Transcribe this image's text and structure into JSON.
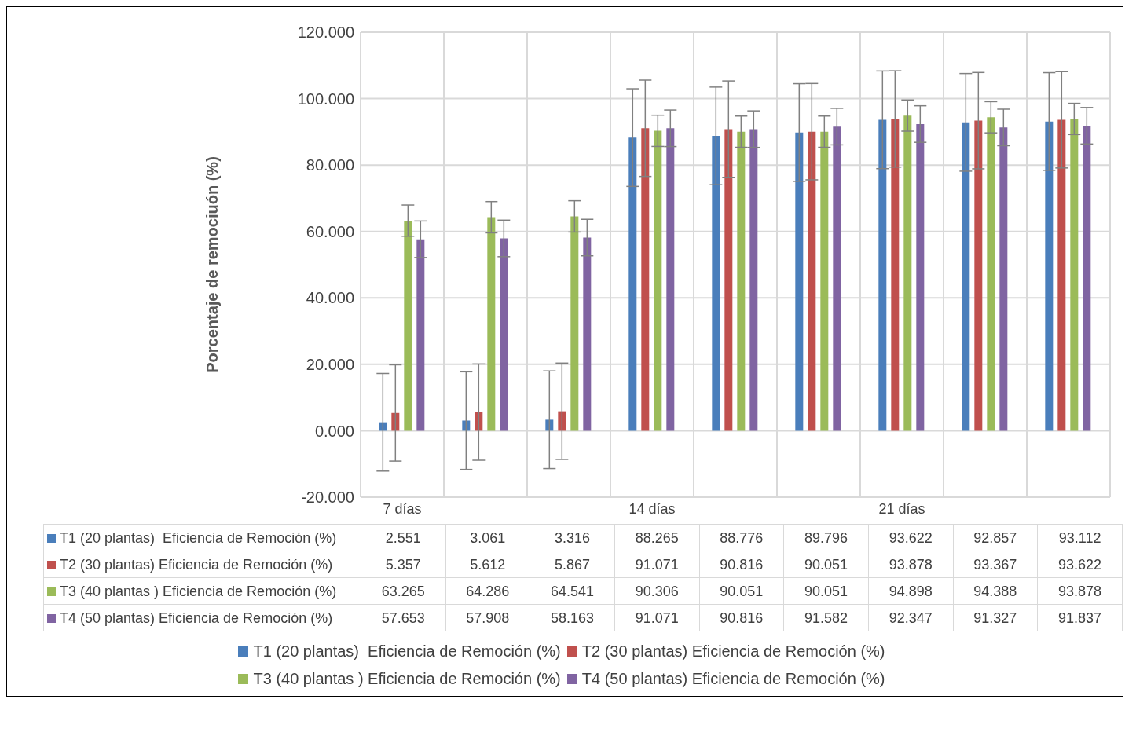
{
  "chart_data": {
    "type": "bar",
    "ylabel": "Porcentaje de remociuón (%)",
    "categories": [
      "7 días",
      null,
      null,
      "14 días",
      null,
      null,
      "21 días",
      null,
      null
    ],
    "series": [
      {
        "name": "T1 (20 plantas)  Eficiencia de Remoción (%)",
        "color": "#4a7ebb",
        "values": [
          2.551,
          3.061,
          3.316,
          88.265,
          88.776,
          89.796,
          93.622,
          92.857,
          93.112
        ],
        "errors": [
          14.7,
          14.7,
          14.7,
          14.7,
          14.7,
          14.7,
          14.7,
          14.7,
          14.7
        ]
      },
      {
        "name": "T2 (30 plantas) Eficiencia de Remoción (%)",
        "color": "#c0504d",
        "values": [
          5.357,
          5.612,
          5.867,
          91.071,
          90.816,
          90.051,
          93.878,
          93.367,
          93.622
        ],
        "errors": [
          14.5,
          14.5,
          14.5,
          14.5,
          14.5,
          14.5,
          14.5,
          14.5,
          14.5
        ]
      },
      {
        "name": "T3 (40 plantas ) Eficiencia de Remoción (%)",
        "color": "#9bbb59",
        "values": [
          63.265,
          64.286,
          64.541,
          90.306,
          90.051,
          90.051,
          94.898,
          94.388,
          93.878
        ],
        "errors": [
          4.7,
          4.7,
          4.7,
          4.7,
          4.7,
          4.7,
          4.7,
          4.7,
          4.7
        ]
      },
      {
        "name": "T4 (50 plantas) Eficiencia de Remoción (%)",
        "color": "#8064a2",
        "values": [
          57.653,
          57.908,
          58.163,
          91.071,
          90.816,
          91.582,
          92.347,
          91.327,
          91.837
        ],
        "errors": [
          5.5,
          5.5,
          5.5,
          5.5,
          5.5,
          5.5,
          5.5,
          5.5,
          5.5
        ]
      }
    ],
    "ylim": [
      -20,
      120
    ],
    "yticks": [
      {
        "value": -20,
        "label": "-20.000"
      },
      {
        "value": 0,
        "label": "0.000"
      },
      {
        "value": 20,
        "label": "20.000"
      },
      {
        "value": 40,
        "label": "40.000"
      },
      {
        "value": 60,
        "label": "60.000"
      },
      {
        "value": 80,
        "label": "80.000"
      },
      {
        "value": 100,
        "label": "100.000"
      },
      {
        "value": 120,
        "label": "120.000"
      }
    ],
    "grid": true,
    "legend": "bottom",
    "data_labels": true
  }
}
